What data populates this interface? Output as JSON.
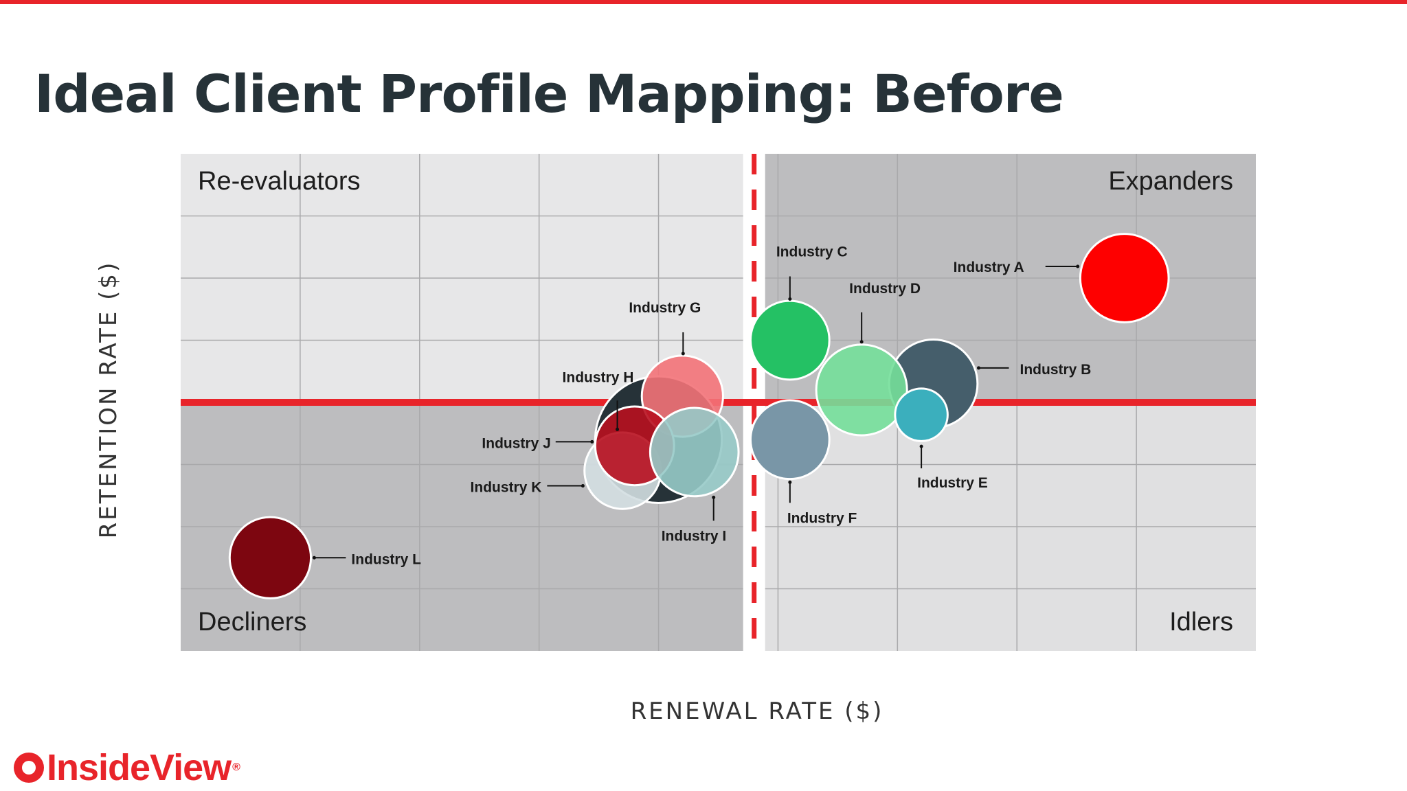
{
  "title": "Ideal Client Profile Mapping: Before",
  "brand": {
    "name": "InsideView",
    "reg": "®",
    "color": "#e8242a"
  },
  "chart_data": {
    "type": "scatter",
    "xlabel": "RENEWAL RATE ($)",
    "ylabel": "RETENTION RATE ($)",
    "xlim": [
      0,
      9
    ],
    "ylim": [
      0,
      8
    ],
    "grid": true,
    "dividers": {
      "x": 4.8,
      "y": 4
    },
    "quadrants": {
      "top_left": "Re-evaluators",
      "top_right": "Expanders",
      "bottom_left": "Decliners",
      "bottom_right": "Idlers"
    },
    "series": [
      {
        "label": "Industry A",
        "x": 7.9,
        "y": 6.0,
        "r": 0.37,
        "color": "#fe0000"
      },
      {
        "label": "Industry B",
        "x": 6.3,
        "y": 4.3,
        "r": 0.37,
        "color": "#455e6b"
      },
      {
        "label": "Industry C",
        "x": 5.1,
        "y": 5.0,
        "r": 0.33,
        "color": "#24c164"
      },
      {
        "label": "Industry D",
        "x": 5.7,
        "y": 4.2,
        "r": 0.38,
        "color": "#74df9a"
      },
      {
        "label": "Industry E",
        "x": 6.2,
        "y": 3.8,
        "r": 0.22,
        "color": "#3bafbd"
      },
      {
        "label": "Industry F",
        "x": 5.1,
        "y": 3.4,
        "r": 0.33,
        "color": "#7996a7"
      },
      {
        "label": "Industry G",
        "x": 4.2,
        "y": 4.1,
        "r": 0.34,
        "color": "#f37278"
      },
      {
        "label": "Industry H",
        "x": 4.0,
        "y": 3.4,
        "r": 0.53,
        "color": "#263238"
      },
      {
        "label": "Industry I",
        "x": 4.3,
        "y": 3.2,
        "r": 0.37,
        "color": "#97cac8"
      },
      {
        "label": "Industry J",
        "x": 3.8,
        "y": 3.3,
        "r": 0.33,
        "color": "#b8101f"
      },
      {
        "label": "Industry K",
        "x": 3.7,
        "y": 2.9,
        "r": 0.32,
        "color": "#d3dee1"
      },
      {
        "label": "Industry L",
        "x": 0.75,
        "y": 1.5,
        "r": 0.34,
        "color": "#7d0610"
      }
    ]
  }
}
